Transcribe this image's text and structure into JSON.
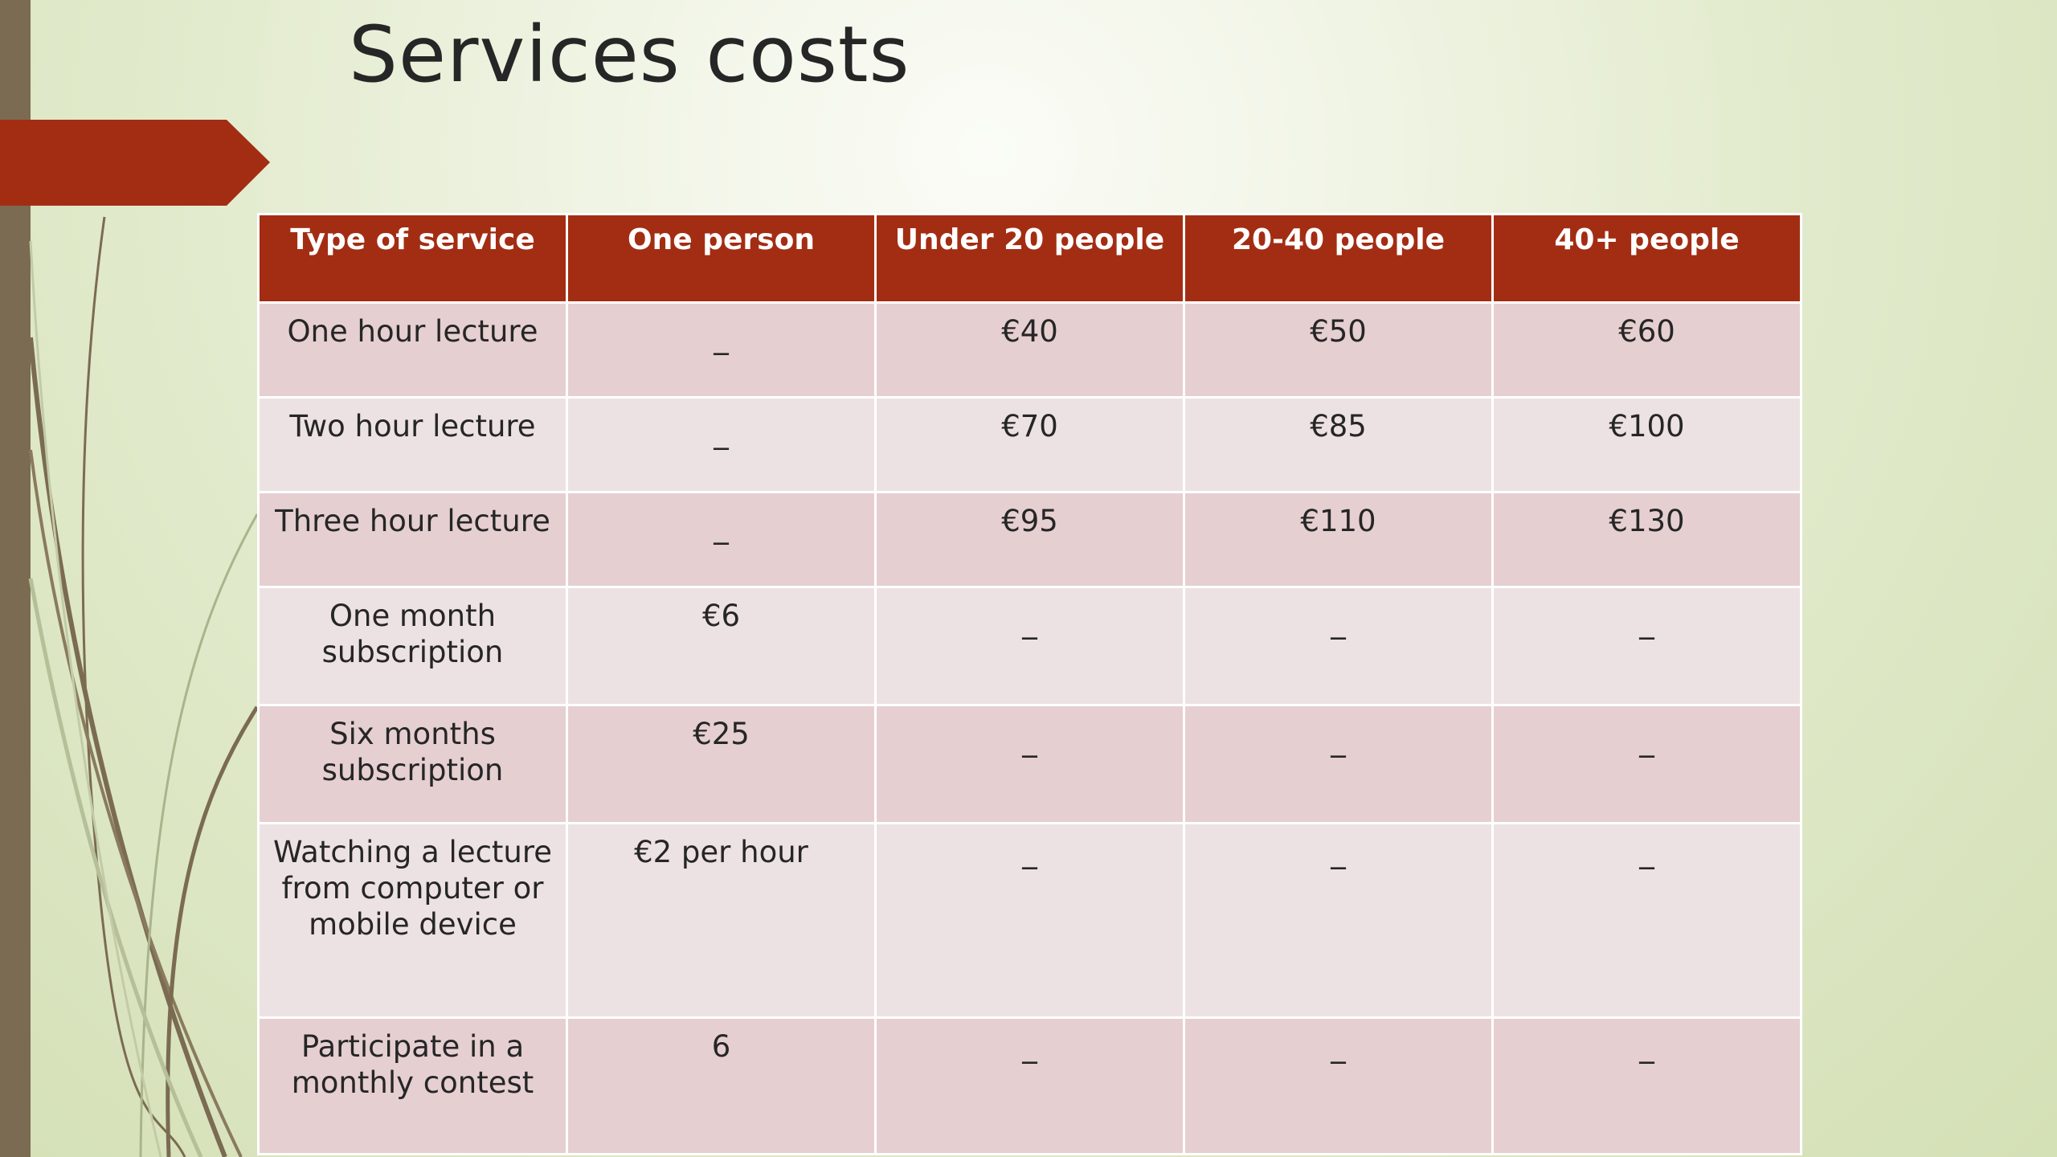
{
  "slide": {
    "title": "Services costs"
  },
  "colors": {
    "header_bg": "#a32d13",
    "banner": "#a32d13",
    "row_dark": "#e6cfd1",
    "row_light": "#ede2e3",
    "side_bar": "#7b6b52"
  },
  "table": {
    "headers": [
      "Type of service",
      "One person",
      "Under 20 people",
      "20-40 people",
      "40+ people"
    ],
    "rows": [
      {
        "service": "One hour lecture",
        "one_person": "_",
        "under_20": "€40",
        "20_40": "€50",
        "40_plus": "€60"
      },
      {
        "service": "Two hour lecture",
        "one_person": "_",
        "under_20": "€70",
        "20_40": "€85",
        "40_plus": "€100"
      },
      {
        "service": "Three hour lecture",
        "one_person": "_",
        "under_20": "€95",
        "20_40": "€110",
        "40_plus": "€130"
      },
      {
        "service": "One month subscription",
        "one_person": "€6",
        "under_20": "_",
        "20_40": "_",
        "40_plus": "_"
      },
      {
        "service": "Six months subscription",
        "one_person": "€25",
        "under_20": "_",
        "20_40": "_",
        "40_plus": "_"
      },
      {
        "service": "Watching a lecture from computer or mobile device",
        "one_person": "€2 per hour",
        "under_20": "_",
        "20_40": "_",
        "40_plus": "_"
      },
      {
        "service": "Participate in a monthly contest",
        "one_person": "6",
        "under_20": "_",
        "20_40": "_",
        "40_plus": "_"
      }
    ]
  }
}
